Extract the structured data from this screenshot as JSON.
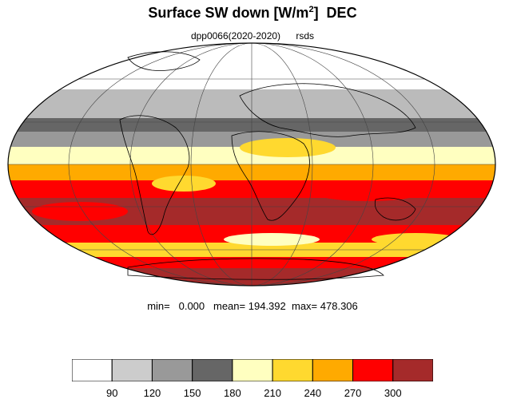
{
  "title": {
    "main": "Surface SW down [W/m",
    "sup": "2",
    "tail": "]  DEC"
  },
  "subtitle": {
    "run": "dpp0066(2020-2020)",
    "variable": "rsds"
  },
  "stats": {
    "min_label": "min=",
    "min": "0.000",
    "mean_label": "mean=",
    "mean": "194.392",
    "max_label": "max=",
    "max": "478.306"
  },
  "colorbar": {
    "colors": [
      "#ffffff",
      "#cccccc",
      "#999999",
      "#666666",
      "#ffffc0",
      "#ffd92f",
      "#ffaa00",
      "#ff0000",
      "#a52a2a"
    ],
    "labels": [
      "90",
      "120",
      "150",
      "180",
      "210",
      "240",
      "270",
      "300"
    ]
  },
  "map": {
    "projection": "Mollweide",
    "graticule": true,
    "ocean_land_outline_color": "#000000"
  }
}
